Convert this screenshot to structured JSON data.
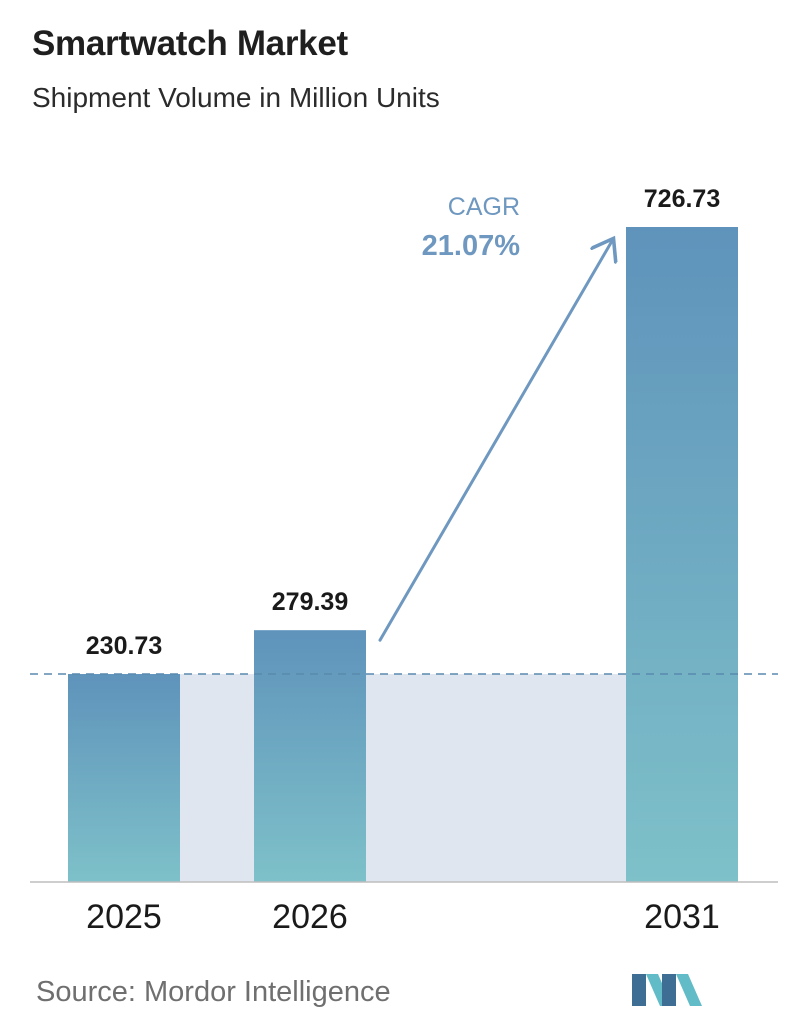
{
  "header": {
    "title": "Smartwatch Market",
    "subtitle": "Shipment Volume in Million Units"
  },
  "chart_data": {
    "type": "bar",
    "categories": [
      "2025",
      "2026",
      "2031"
    ],
    "values": [
      230.73,
      279.39,
      726.73
    ],
    "value_labels": [
      "230.73",
      "279.39",
      "726.73"
    ],
    "title": "Smartwatch Market",
    "subtitle": "Shipment Volume in Million Units",
    "xlabel": "",
    "ylabel": "",
    "grid": false,
    "legend": "none",
    "annotation": {
      "label": "CAGR",
      "value": "21.07%",
      "from": "2026",
      "to": "2031"
    },
    "reference_line": {
      "value": 230.73,
      "style": "dashed"
    }
  },
  "colors": {
    "bar_top": "#5f93bb",
    "bar_bottom": "#7ec1c9",
    "band": "#dfe6ef",
    "reference_line": "#5a8aae",
    "arrow": "#6f98c0",
    "cagr_label": "#6f98c0",
    "axis": "#bdbdbd",
    "logo_dark": "#3f6e94",
    "logo_light": "#62bcc8"
  },
  "footer": {
    "source": "Source:  Mordor Intelligence"
  },
  "logo": {
    "icon": "mordor-intelligence-logo-icon"
  }
}
